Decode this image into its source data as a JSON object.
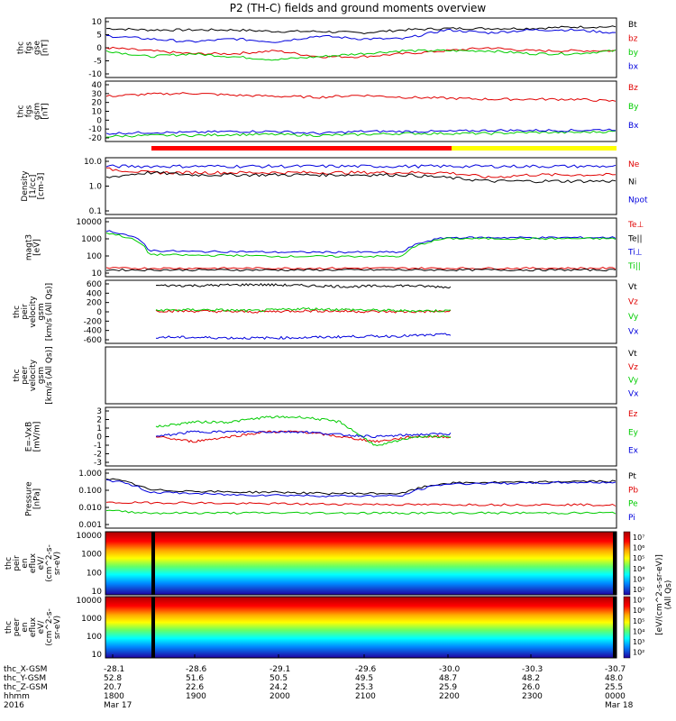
{
  "title": "P2 (TH-C) fields and ground moments overview",
  "colors": {
    "black": "#000000",
    "red": "#e00000",
    "green": "#00cc00",
    "blue": "#0000dd",
    "yellow": "#ffff00"
  },
  "panels": [
    {
      "id": "fgs-gse",
      "ylabel": [
        "thc",
        "fgs",
        "gse",
        "[nT]"
      ],
      "ticks": [
        "10",
        "5",
        "0",
        "-5",
        "-10"
      ],
      "legend": [
        {
          "label": "Bt",
          "color": "black"
        },
        {
          "label": "bz",
          "color": "red"
        },
        {
          "label": "by",
          "color": "green"
        },
        {
          "label": "bx",
          "color": "blue"
        }
      ]
    },
    {
      "id": "fgs-gsm",
      "ylabel": [
        "thc",
        "fgs",
        "gsm",
        "[nT]"
      ],
      "ticks": [
        "40",
        "30",
        "20",
        "10",
        "0",
        "-10",
        "-20"
      ],
      "legend": [
        {
          "label": "Bz",
          "color": "red"
        },
        {
          "label": "By",
          "color": "green"
        },
        {
          "label": "Bx",
          "color": "blue"
        }
      ]
    },
    {
      "id": "density",
      "ylabel": [
        "Density",
        "[1/cc]",
        "[cm-3]"
      ],
      "ticks": [
        "10.0",
        "1.0",
        "0.1"
      ],
      "legend": [
        {
          "label": "Ne",
          "color": "red"
        },
        {
          "label": "Ni",
          "color": "black"
        },
        {
          "label": "Npot",
          "color": "blue"
        }
      ]
    },
    {
      "id": "temperature",
      "ylabel": [
        "magt3",
        "[eV]"
      ],
      "ticks": [
        "10000",
        "1000",
        "100",
        "10"
      ],
      "legend": [
        {
          "label": "Te⊥",
          "color": "red"
        },
        {
          "label": "Te||",
          "color": "black"
        },
        {
          "label": "Ti⊥",
          "color": "blue"
        },
        {
          "label": "Ti||",
          "color": "green"
        }
      ]
    },
    {
      "id": "peir-velocity",
      "ylabel": [
        "thc",
        "peir",
        "velocity",
        "gsm",
        "[km/s (All Qs)]"
      ],
      "ticks": [
        "600",
        "400",
        "200",
        "0",
        "-200",
        "-400",
        "-600"
      ],
      "legend": [
        {
          "label": "Vt",
          "color": "black"
        },
        {
          "label": "Vz",
          "color": "red"
        },
        {
          "label": "Vy",
          "color": "green"
        },
        {
          "label": "Vx",
          "color": "blue"
        }
      ]
    },
    {
      "id": "peer-velocity",
      "ylabel": [
        "thc",
        "peer",
        "velocity",
        "gsm",
        "[km/s (All Qs)]"
      ],
      "ticks": [],
      "legend": [
        {
          "label": "Vt",
          "color": "black"
        },
        {
          "label": "Vz",
          "color": "red"
        },
        {
          "label": "Vy",
          "color": "green"
        },
        {
          "label": "Vx",
          "color": "blue"
        }
      ]
    },
    {
      "id": "efield",
      "ylabel": [
        "E=-VxB",
        "[mV/m]"
      ],
      "ticks": [
        "3",
        "2",
        "1",
        "0",
        "-1",
        "-2",
        "-3"
      ],
      "legend": [
        {
          "label": "Ez",
          "color": "red"
        },
        {
          "label": "Ey",
          "color": "green"
        },
        {
          "label": "Ex",
          "color": "blue"
        }
      ]
    },
    {
      "id": "pressure",
      "ylabel": [
        "Pressure",
        "[nPa]"
      ],
      "ticks": [
        "1.000",
        "0.100",
        "0.010",
        "0.001"
      ],
      "legend": [
        {
          "label": "Pt",
          "color": "black"
        },
        {
          "label": "Pb",
          "color": "red"
        },
        {
          "label": "Pe",
          "color": "green"
        },
        {
          "label": "Pi",
          "color": "blue"
        }
      ]
    },
    {
      "id": "peir-eflux",
      "ylabel": [
        "thc",
        "peir",
        "en",
        "eflux",
        "eV/",
        "(cm^2-s-",
        "sr-eV)"
      ],
      "ticks": [
        "10000",
        "1000",
        "100",
        "10"
      ],
      "legend": []
    },
    {
      "id": "peer-eflux",
      "ylabel": [
        "thc",
        "peer",
        "en",
        "eflux",
        "eV/",
        "(cm^2-s-",
        "sr-eV)"
      ],
      "ticks": [
        "10000",
        "1000",
        "100",
        "10"
      ],
      "legend": []
    }
  ],
  "colorbar": {
    "label": "[eV/(cm^2-s-sr-eV)]",
    "label2": "(All Qs)",
    "ticks": [
      "10⁷",
      "10⁶",
      "10⁵",
      "10⁴",
      "10³",
      "10²",
      "10⁷",
      "10⁶",
      "10⁵",
      "10⁴",
      "10³",
      "10²"
    ]
  },
  "axis": {
    "row_labels": [
      "thc_X-GSM",
      "thc_Y-GSM",
      "thc_Z-GSM",
      "hhmm",
      "2016"
    ],
    "columns": [
      {
        "values": [
          "-28.1",
          "52.8",
          "20.7",
          "1800",
          "Mar 17"
        ]
      },
      {
        "values": [
          "-28.6",
          "51.6",
          "22.6",
          "1900",
          ""
        ]
      },
      {
        "values": [
          "-29.1",
          "50.5",
          "24.2",
          "2000",
          ""
        ]
      },
      {
        "values": [
          "-29.6",
          "49.5",
          "25.3",
          "2100",
          ""
        ]
      },
      {
        "values": [
          "-30.0",
          "48.7",
          "25.9",
          "2200",
          ""
        ]
      },
      {
        "values": [
          "-30.3",
          "48.2",
          "26.0",
          "2300",
          ""
        ]
      },
      {
        "values": [
          "-30.7",
          "48.0",
          "25.5",
          "0000",
          "Mar 18"
        ]
      }
    ]
  },
  "chart_data": {
    "type": "line",
    "title": "P2 (TH-C) fields and ground moments overview",
    "x_time_range": [
      "2016-03-17 18:00",
      "2016-03-18 00:00"
    ],
    "x": [
      "18:00",
      "18:30",
      "19:00",
      "19:30",
      "20:00",
      "20:30",
      "21:00",
      "21:30",
      "22:00",
      "22:30",
      "23:00",
      "23:30",
      "00:00"
    ],
    "panels": [
      {
        "name": "fgs gse",
        "ylim": [
          -10,
          10
        ],
        "series": [
          {
            "name": "Bt",
            "color": "black",
            "values": [
              6.5,
              6,
              6,
              6,
              5.5,
              5.5,
              5,
              6,
              6.5,
              6.5,
              6.5,
              7,
              7
            ]
          },
          {
            "name": "bz",
            "color": "red",
            "values": [
              0,
              -1,
              -2,
              -2,
              -1,
              -3,
              -3,
              -2,
              -1,
              0,
              -1,
              -1,
              -1
            ]
          },
          {
            "name": "by",
            "color": "green",
            "values": [
              -1,
              -3,
              -2,
              -3,
              -4,
              -3,
              -2,
              -1,
              -1,
              -1,
              -2,
              -2,
              -1
            ]
          },
          {
            "name": "bx",
            "color": "blue",
            "values": [
              4,
              3,
              2,
              3,
              2,
              4,
              3,
              3,
              6,
              5,
              6,
              6,
              5
            ]
          }
        ]
      },
      {
        "name": "fgs gsm",
        "ylim": [
          -20,
          40
        ],
        "series": [
          {
            "name": "Bz",
            "color": "red",
            "values": [
              25,
              27,
              28,
              26,
              25,
              24,
              26,
              24,
              23,
              22,
              22,
              22,
              20
            ]
          },
          {
            "name": "By",
            "color": "green",
            "values": [
              -15,
              -14,
              -14,
              -13,
              -13,
              -14,
              -13,
              -12,
              -12,
              -12,
              -11,
              -11,
              -10
            ]
          },
          {
            "name": "Bx",
            "color": "blue",
            "values": [
              -12,
              -11,
              -11,
              -10,
              -10,
              -12,
              -10,
              -10,
              -10,
              -9,
              -9,
              -9,
              -8
            ]
          }
        ]
      },
      {
        "name": "Density",
        "log": true,
        "ylim": [
          0.1,
          10
        ],
        "series": [
          {
            "name": "Ne",
            "color": "red",
            "values": [
              4,
              3,
              3,
              3,
              3,
              3,
              3,
              3,
              3,
              2,
              2.5,
              2.5,
              2.5
            ]
          },
          {
            "name": "Ni",
            "color": "black",
            "values": [
              2,
              3,
              2.5,
              2.5,
              2.5,
              2.5,
              2.5,
              2.5,
              2,
              1.5,
              1.5,
              1.5,
              1.5
            ]
          },
          {
            "name": "Npot",
            "color": "blue",
            "values": [
              5,
              5,
              5,
              5,
              5,
              5,
              5,
              5,
              5,
              5,
              5,
              5,
              5
            ]
          }
        ]
      },
      {
        "name": "magt3",
        "log": true,
        "ylim": [
          5,
          10000
        ],
        "series": [
          {
            "name": "Te⊥",
            "color": "red",
            "values": [
              15,
              15,
              15,
              15,
              15,
              15,
              15,
              15,
              15,
              15,
              15,
              15,
              15
            ]
          },
          {
            "name": "Te||",
            "color": "black",
            "values": [
              12,
              12,
              12,
              12,
              12,
              12,
              12,
              12,
              12,
              12,
              12,
              12,
              12
            ]
          },
          {
            "name": "Ti⊥",
            "color": "blue",
            "values": [
              2000,
              150,
              130,
              130,
              120,
              120,
              120,
              120,
              800,
              800,
              800,
              800,
              800
            ]
          },
          {
            "name": "Ti||",
            "color": "green",
            "values": [
              1500,
              90,
              80,
              80,
              70,
              70,
              70,
              70,
              700,
              700,
              700,
              700,
              700
            ]
          }
        ]
      },
      {
        "name": "peir velocity",
        "ylim": [
          -600,
          600
        ],
        "series": [
          {
            "name": "Vt",
            "color": "black",
            "values": [
              500,
              500,
              520,
              500,
              480,
              500,
              470
            ]
          },
          {
            "name": "Vz",
            "color": "red",
            "values": [
              20,
              10,
              0,
              20,
              10,
              0,
              10
            ]
          },
          {
            "name": "Vy",
            "color": "green",
            "values": [
              30,
              40,
              20,
              60,
              40,
              20,
              20
            ]
          },
          {
            "name": "Vx",
            "color": "blue",
            "values": [
              -480,
              -490,
              -500,
              -490,
              -470,
              -460,
              -430
            ]
          }
        ]
      },
      {
        "name": "E=-VxB",
        "ylim": [
          -3,
          3
        ],
        "series": [
          {
            "name": "Ez",
            "color": "red",
            "values": [
              0,
              -0.5,
              0,
              0.5,
              0.5,
              0,
              -0.5,
              0,
              0
            ]
          },
          {
            "name": "Ey",
            "color": "green",
            "values": [
              1,
              1.5,
              1.5,
              2,
              2,
              1.5,
              -1,
              0,
              0
            ]
          },
          {
            "name": "Ex",
            "color": "blue",
            "values": [
              0,
              0.5,
              0.5,
              0.5,
              0.5,
              0.2,
              0,
              0.2,
              0.3
            ]
          }
        ]
      },
      {
        "name": "Pressure",
        "log": true,
        "ylim": [
          0.001,
          1
        ],
        "series": [
          {
            "name": "Pt",
            "color": "black",
            "values": [
              0.35,
              0.09,
              0.08,
              0.07,
              0.07,
              0.06,
              0.06,
              0.06,
              0.2,
              0.22,
              0.22,
              0.25,
              0.25
            ]
          },
          {
            "name": "Pb",
            "color": "red",
            "values": [
              0.02,
              0.02,
              0.02,
              0.018,
              0.018,
              0.017,
              0.017,
              0.016,
              0.016,
              0.016,
              0.016,
              0.016,
              0.015
            ]
          },
          {
            "name": "Pe",
            "color": "green",
            "values": [
              0.008,
              0.006,
              0.006,
              0.006,
              0.006,
              0.006,
              0.006,
              0.006,
              0.006,
              0.006,
              0.006,
              0.006,
              0.006
            ]
          },
          {
            "name": "Pi",
            "color": "blue",
            "values": [
              0.3,
              0.07,
              0.06,
              0.05,
              0.05,
              0.045,
              0.045,
              0.045,
              0.18,
              0.2,
              0.2,
              0.22,
              0.22
            ]
          }
        ]
      }
    ]
  }
}
